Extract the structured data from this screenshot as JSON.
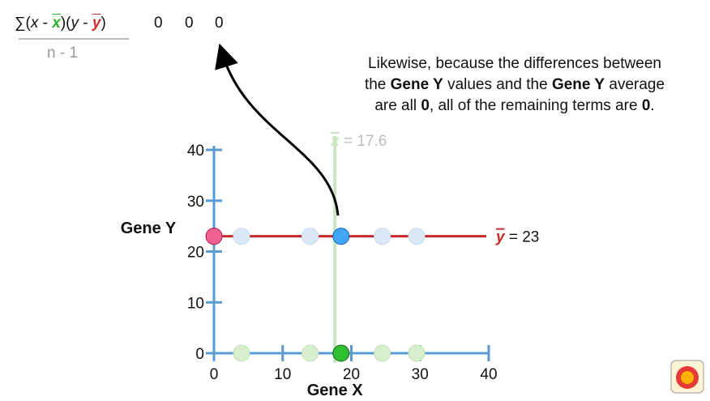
{
  "formula": {
    "sigma": "∑",
    "open1": "(",
    "x": "x",
    "minus1": " - ",
    "xbar": "x",
    "close1": ")(",
    "y": "y",
    "minus2": " - ",
    "ybar": "y",
    "close2": ")",
    "denominator": "n - 1",
    "terms": [
      "0",
      "0",
      "0"
    ]
  },
  "explanation": {
    "line1": "Likewise, because the differences between",
    "line2_pre": "the ",
    "line2_b1": "Gene Y",
    "line2_mid": " values and the ",
    "line2_b2": "Gene Y",
    "line2_post": " average",
    "line3_pre": "are all ",
    "line3_b1": "0",
    "line3_mid": ", all of the remaining terms are ",
    "line3_b2": "0",
    "line3_post": "."
  },
  "chart_data": {
    "type": "scatter",
    "xlabel": "Gene X",
    "ylabel": "Gene Y",
    "xlim": [
      0,
      40
    ],
    "ylim": [
      0,
      40
    ],
    "xticks": [
      0,
      10,
      20,
      30,
      40
    ],
    "yticks": [
      0,
      10,
      20,
      30,
      40
    ],
    "series": [
      {
        "points_on_x_axis": [
          {
            "x": 0,
            "y": 0,
            "highlight": false,
            "faded": true,
            "hidden_behind": true
          },
          {
            "x": 4,
            "y": 0,
            "faded": true
          },
          {
            "x": 14,
            "y": 0,
            "faded": true
          },
          {
            "x": 18.5,
            "y": 0,
            "highlight": true
          },
          {
            "x": 24.5,
            "y": 0,
            "faded": true
          },
          {
            "x": 29.5,
            "y": 0,
            "faded": true
          }
        ]
      },
      {
        "points_on_mean_line": [
          {
            "x": 0,
            "y": 23,
            "color": "pink"
          },
          {
            "x": 4,
            "y": 23,
            "faded": true
          },
          {
            "x": 14,
            "y": 23,
            "faded": true
          },
          {
            "x": 18.5,
            "y": 23,
            "highlight": true
          },
          {
            "x": 24.5,
            "y": 23,
            "faded": true
          },
          {
            "x": 29.5,
            "y": 23,
            "faded": true
          }
        ]
      }
    ],
    "xbar_line": {
      "value": 17.6,
      "label_sym": "x",
      "label_text": "= 17.6"
    },
    "ybar_line": {
      "value": 23,
      "label_sym": "y",
      "label_text": "= 23"
    }
  },
  "colors": {
    "axis": "#5b9bd5",
    "mean_y_line": "#c62828",
    "mean_x_line": "#c8e6c0",
    "highlight_blue": "#42a5f5",
    "faded_blue": "#dbe9f7",
    "highlight_green": "#2fbf2f",
    "faded_green": "#d6efcc",
    "pink": "#f06292"
  }
}
